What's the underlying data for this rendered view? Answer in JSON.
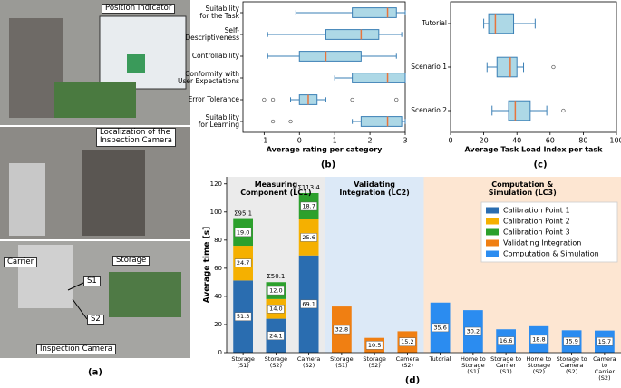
{
  "photos": {
    "position_indicator": "Position Indicator",
    "localization": "Localization of the\nInspection Camera",
    "carrier": "Carrier",
    "storage": "Storage",
    "s1": "S1",
    "s2": "S2",
    "inspection_camera": "Inspection Camera"
  },
  "panel_labels": [
    "(a)",
    "(b)",
    "(c)",
    "(d)"
  ],
  "chart_data": [
    {
      "type": "box",
      "xlabel": "Average rating per category",
      "categories": [
        "Suitability\nfor the Task",
        "Self-\nDescriptiveness",
        "Controllability",
        "Conformity with\nUser Expectations",
        "Error Tolerance",
        "Suitability\nfor Learning"
      ],
      "boxes": [
        {
          "whislo": -0.1,
          "q1": 1.5,
          "med": 2.5,
          "q3": 2.75,
          "whishi": 3,
          "fliers": []
        },
        {
          "whislo": -0.9,
          "q1": 0.75,
          "med": 1.75,
          "q3": 2.25,
          "whishi": 2.9,
          "fliers": []
        },
        {
          "whislo": -0.9,
          "q1": 0,
          "med": 0.75,
          "q3": 1.75,
          "whishi": 2.75,
          "fliers": []
        },
        {
          "whislo": 1,
          "q1": 1.5,
          "med": 2.5,
          "q3": 3,
          "whishi": 3,
          "fliers": []
        },
        {
          "whislo": -0.25,
          "q1": 0,
          "med": 0.25,
          "q3": 0.5,
          "whishi": 0.75,
          "fliers": [
            -1,
            -0.75,
            1.5,
            2.75
          ]
        },
        {
          "whislo": 1.5,
          "q1": 1.75,
          "med": 2.5,
          "q3": 2.9,
          "whishi": 3,
          "fliers": [
            -0.75,
            -0.25
          ]
        }
      ],
      "xlim": [
        -1.6,
        3.0
      ],
      "xticks": [
        -1,
        0,
        1,
        2,
        3
      ],
      "box_color": "#add8e6",
      "edge_color": "#3a7fb5",
      "median_color": "#e8743b"
    },
    {
      "type": "box",
      "xlabel": "Average Task Load Index per task",
      "categories": [
        "Tutorial",
        "Scenario 1",
        "Scenario 2"
      ],
      "boxes": [
        {
          "whislo": 20,
          "q1": 23,
          "med": 27,
          "q3": 38,
          "whishi": 51,
          "fliers": []
        },
        {
          "whislo": 22,
          "q1": 28,
          "med": 36,
          "q3": 40,
          "whishi": 44,
          "fliers": [
            62
          ]
        },
        {
          "whislo": 25,
          "q1": 35,
          "med": 39,
          "q3": 48,
          "whishi": 58,
          "fliers": [
            68
          ]
        }
      ],
      "xlim": [
        0,
        100
      ],
      "xticks": [
        0,
        20,
        40,
        60,
        80,
        100
      ],
      "box_color": "#add8e6",
      "edge_color": "#3a7fb5",
      "median_color": "#e8743b"
    },
    {
      "type": "stacked_bar",
      "ylabel": "Average time [s]",
      "groups": [
        {
          "label": "Measuring\nComponent (LC1)",
          "color": "#ebebeb",
          "categories": [
            "Storage\n(S1)",
            "Storage\n(S2)",
            "Camera\n(S2)"
          ]
        },
        {
          "label": "Validating\nIntegration (LC2)",
          "color": "#dce9f7",
          "categories": [
            "Storage\n(S1)",
            "Storage\n(S2)",
            "Camera\n(S2)"
          ]
        },
        {
          "label": "Computation &\nSimulation (LC3)",
          "color": "#fde6d2",
          "categories": [
            "Tutorial",
            "Home to\nStorage\n(S1)",
            "Storage to\nCarrier\n(S1)",
            "Home to\nStorage\n(S2)",
            "Storage to\nCamera\n(S2)",
            "Camera to\nCarrier\n(S2)"
          ]
        }
      ],
      "series": [
        {
          "name": "Calibration Point 1",
          "color": "#2a6db0",
          "values": [
            51.3,
            24.1,
            69.1,
            null,
            null,
            null,
            null,
            null,
            null,
            null,
            null,
            null
          ],
          "value_labels": [
            "51.3",
            "24.1",
            "69.1",
            null,
            null,
            null,
            null,
            null,
            null,
            null,
            null,
            null
          ]
        },
        {
          "name": "Calibration Point 2",
          "color": "#f5b000",
          "values": [
            24.7,
            14.0,
            25.6,
            null,
            null,
            null,
            null,
            null,
            null,
            null,
            null,
            null
          ],
          "value_labels": [
            "24.7",
            "14.0",
            "25.6",
            null,
            null,
            null,
            null,
            null,
            null,
            null,
            null,
            null
          ]
        },
        {
          "name": "Calibration Point 3",
          "color": "#2ca02c",
          "values": [
            19.0,
            12.0,
            18.7,
            null,
            null,
            null,
            null,
            null,
            null,
            null,
            null,
            null
          ],
          "value_labels": [
            "19.0",
            "12.0",
            "18.7",
            null,
            null,
            null,
            null,
            null,
            null,
            null,
            null,
            null
          ]
        },
        {
          "name": "Validating Integration",
          "color": "#f07f12",
          "values": [
            null,
            null,
            null,
            32.8,
            10.5,
            15.2,
            null,
            null,
            null,
            null,
            null,
            null
          ],
          "value_labels": [
            null,
            null,
            null,
            "32.8",
            "10.5",
            "15.2",
            null,
            null,
            null,
            null,
            null,
            null
          ]
        },
        {
          "name": "Computation & Simulation",
          "color": "#2b8cf0",
          "values": [
            null,
            null,
            null,
            null,
            null,
            null,
            35.6,
            30.2,
            16.6,
            18.8,
            15.9,
            15.7
          ],
          "value_labels": [
            null,
            null,
            null,
            null,
            null,
            null,
            "35.6",
            "30.2",
            "16.6",
            "18.8",
            "15.9",
            "15.7"
          ]
        }
      ],
      "total_labels": [
        "Σ95.1",
        "Σ50.1",
        "Σ113.4"
      ],
      "ylim": [
        0,
        125
      ],
      "yticks": [
        0,
        20,
        40,
        60,
        80,
        100,
        120
      ],
      "legend": "upper right"
    }
  ]
}
